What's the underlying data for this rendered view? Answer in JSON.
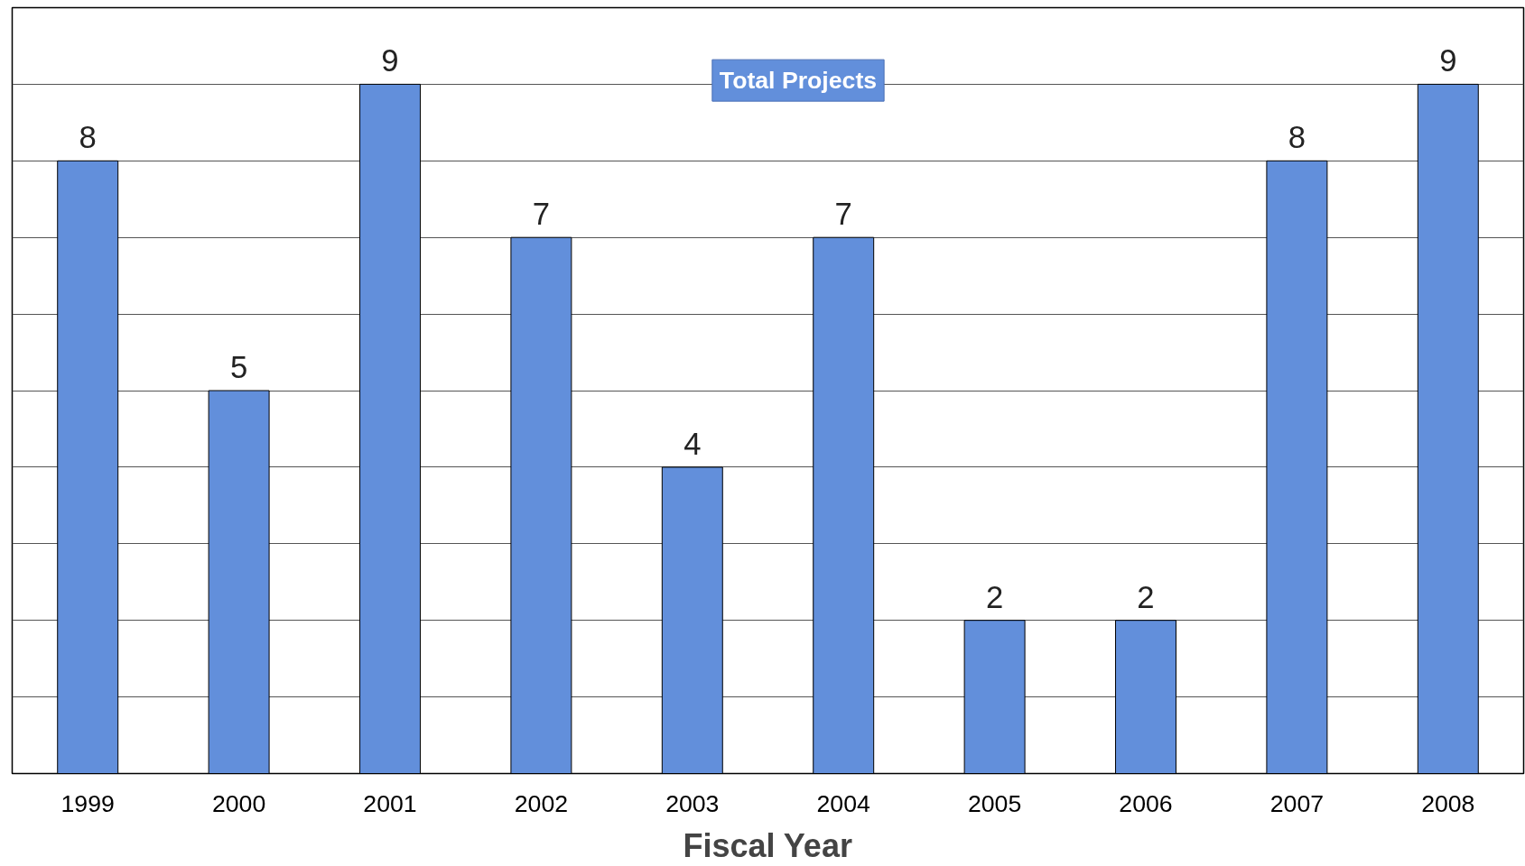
{
  "chart_data": {
    "type": "bar",
    "title": "Total Projects",
    "xlabel": "Fiscal Year",
    "categories": [
      "1999",
      "2000",
      "2001",
      "2002",
      "2003",
      "2004",
      "2005",
      "2006",
      "2007",
      "2008"
    ],
    "values": [
      8,
      5,
      9,
      7,
      4,
      7,
      2,
      2,
      8,
      9
    ],
    "color": "#628fdb",
    "ylim": [
      0,
      10
    ],
    "yticks": [
      {
        "value": 0,
        "label": null
      },
      {
        "value": 1,
        "label": null
      },
      {
        "value": 2,
        "label": null
      },
      {
        "value": 3,
        "label": null
      },
      {
        "value": 4,
        "label": null
      },
      {
        "value": 5,
        "label": null
      },
      {
        "value": 6,
        "label": null
      },
      {
        "value": 7,
        "label": null
      },
      {
        "value": 8,
        "label": null
      },
      {
        "value": 9,
        "label": null
      },
      {
        "value": 10,
        "label": null
      }
    ],
    "tick_labels": "x",
    "grid": "y",
    "data_labels": true
  }
}
